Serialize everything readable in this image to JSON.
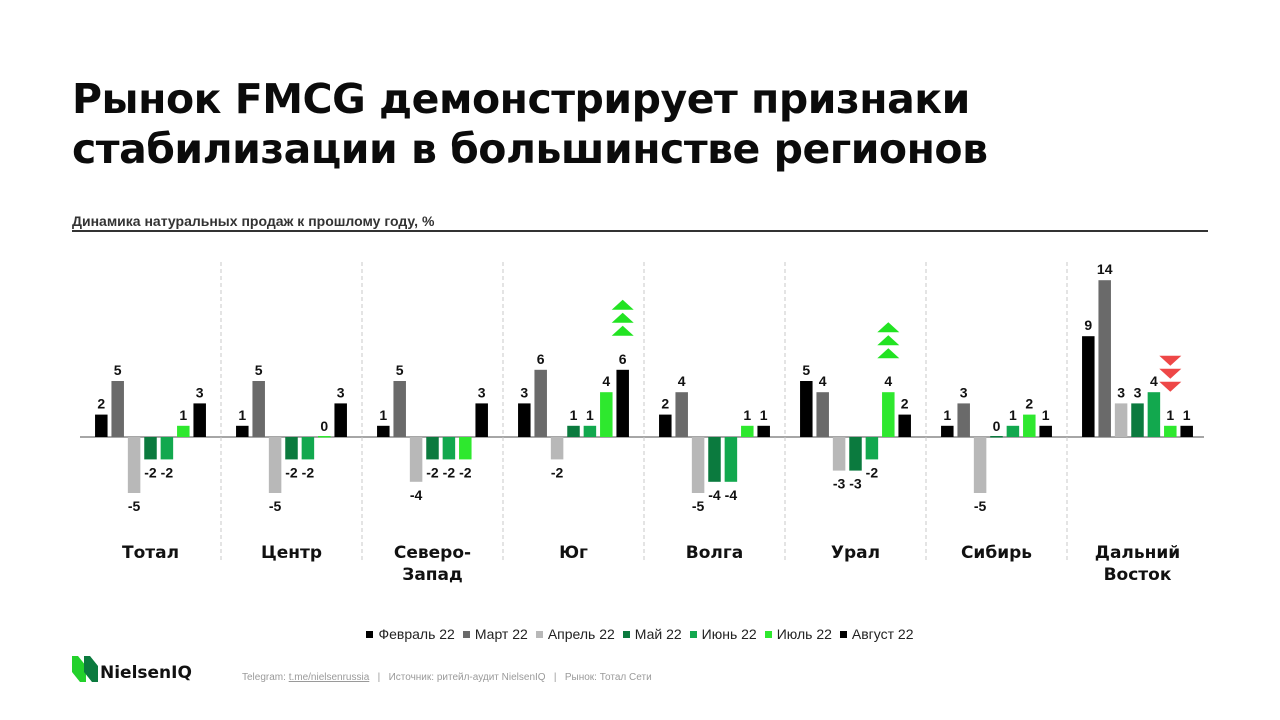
{
  "title_lines": [
    "Рынок FMCG демонстрирует признаки",
    "стабилизации в большинстве регионов"
  ],
  "subtitle": "Динамика натуральных продаж к прошлому году, %",
  "colors": {
    "Февраль 22": "#000000",
    "Март 22": "#6a6a6a",
    "Апрель 22": "#b8b8b8",
    "Май 22": "#0b7a3e",
    "Июнь 22": "#12a84e",
    "Июль 22": "#2ee82e",
    "Август 22": "#000000",
    "arrow_up": "#22e322",
    "arrow_down": "#ee4747"
  },
  "chart_data": {
    "type": "bar",
    "title": "Динамика натуральных продаж к прошлому году, %",
    "categories": [
      "Тотал",
      "Центр",
      "Северо-Запад",
      "Юг",
      "Волга",
      "Урал",
      "Сибирь",
      "Дальний Восток"
    ],
    "category_labels": [
      [
        "Тотал"
      ],
      [
        "Центр"
      ],
      [
        "Северо-",
        "Запад"
      ],
      [
        "Юг"
      ],
      [
        "Волга"
      ],
      [
        "Урал"
      ],
      [
        "Сибирь"
      ],
      [
        "Дальний",
        "Восток"
      ]
    ],
    "series": [
      {
        "name": "Февраль 22",
        "values": [
          2,
          1,
          1,
          3,
          2,
          5,
          1,
          9
        ]
      },
      {
        "name": "Март 22",
        "values": [
          5,
          5,
          5,
          6,
          4,
          4,
          3,
          14
        ]
      },
      {
        "name": "Апрель 22",
        "values": [
          -5,
          -5,
          -4,
          -2,
          -5,
          -3,
          -5,
          3
        ]
      },
      {
        "name": "Май 22",
        "values": [
          -2,
          -2,
          -2,
          1,
          -4,
          -3,
          0,
          3
        ]
      },
      {
        "name": "Июнь 22",
        "values": [
          -2,
          -2,
          -2,
          1,
          -4,
          -2,
          1,
          4
        ]
      },
      {
        "name": "Июль 22",
        "values": [
          1,
          0,
          -2,
          4,
          1,
          4,
          2,
          1
        ]
      },
      {
        "name": "Август 22",
        "values": [
          3,
          3,
          3,
          6,
          1,
          2,
          1,
          1
        ]
      }
    ],
    "visible_labels": [
      [
        "2",
        "5",
        "-5",
        "-2",
        "-2",
        "1",
        "3"
      ],
      [
        "1",
        "5",
        "-5",
        "-2",
        "-2",
        "0",
        "3"
      ],
      [
        "1",
        "5",
        "-4",
        "-2",
        "-2",
        "-2",
        "3"
      ],
      [
        "3",
        "6",
        "-2",
        "1",
        "1",
        "4",
        "6"
      ],
      [
        "2",
        "4",
        "-5",
        "-4",
        "-4",
        "1",
        "1"
      ],
      [
        "5",
        "4",
        "-3",
        "-3",
        "-2",
        "4",
        "2"
      ],
      [
        "1",
        "3",
        "-5",
        "0",
        "1",
        "2",
        "1"
      ],
      [
        "9",
        "14",
        "3",
        "3",
        "4",
        "1",
        "1"
      ]
    ],
    "trend_markers": [
      {
        "category": "Юг",
        "series": "Август 22",
        "direction": "up"
      },
      {
        "category": "Урал",
        "series": "Июль 22",
        "direction": "up"
      },
      {
        "category": "Дальний Восток",
        "series": "Июль 22",
        "direction": "down"
      }
    ],
    "grid": false,
    "legend_position": "bottom"
  },
  "legend": [
    "Февраль 22",
    "Март 22",
    "Апрель 22",
    "Май 22",
    "Июнь 22",
    "Июль 22",
    "Август 22"
  ],
  "brand": "NielsenIQ",
  "footer": {
    "telegram_label": "Telegram:",
    "telegram_link": "t.me/nielsenrussia",
    "separator": "|",
    "source": "Источник: ритейл-аудит NielsenIQ",
    "market": "Рынок: Тотал Сети"
  }
}
